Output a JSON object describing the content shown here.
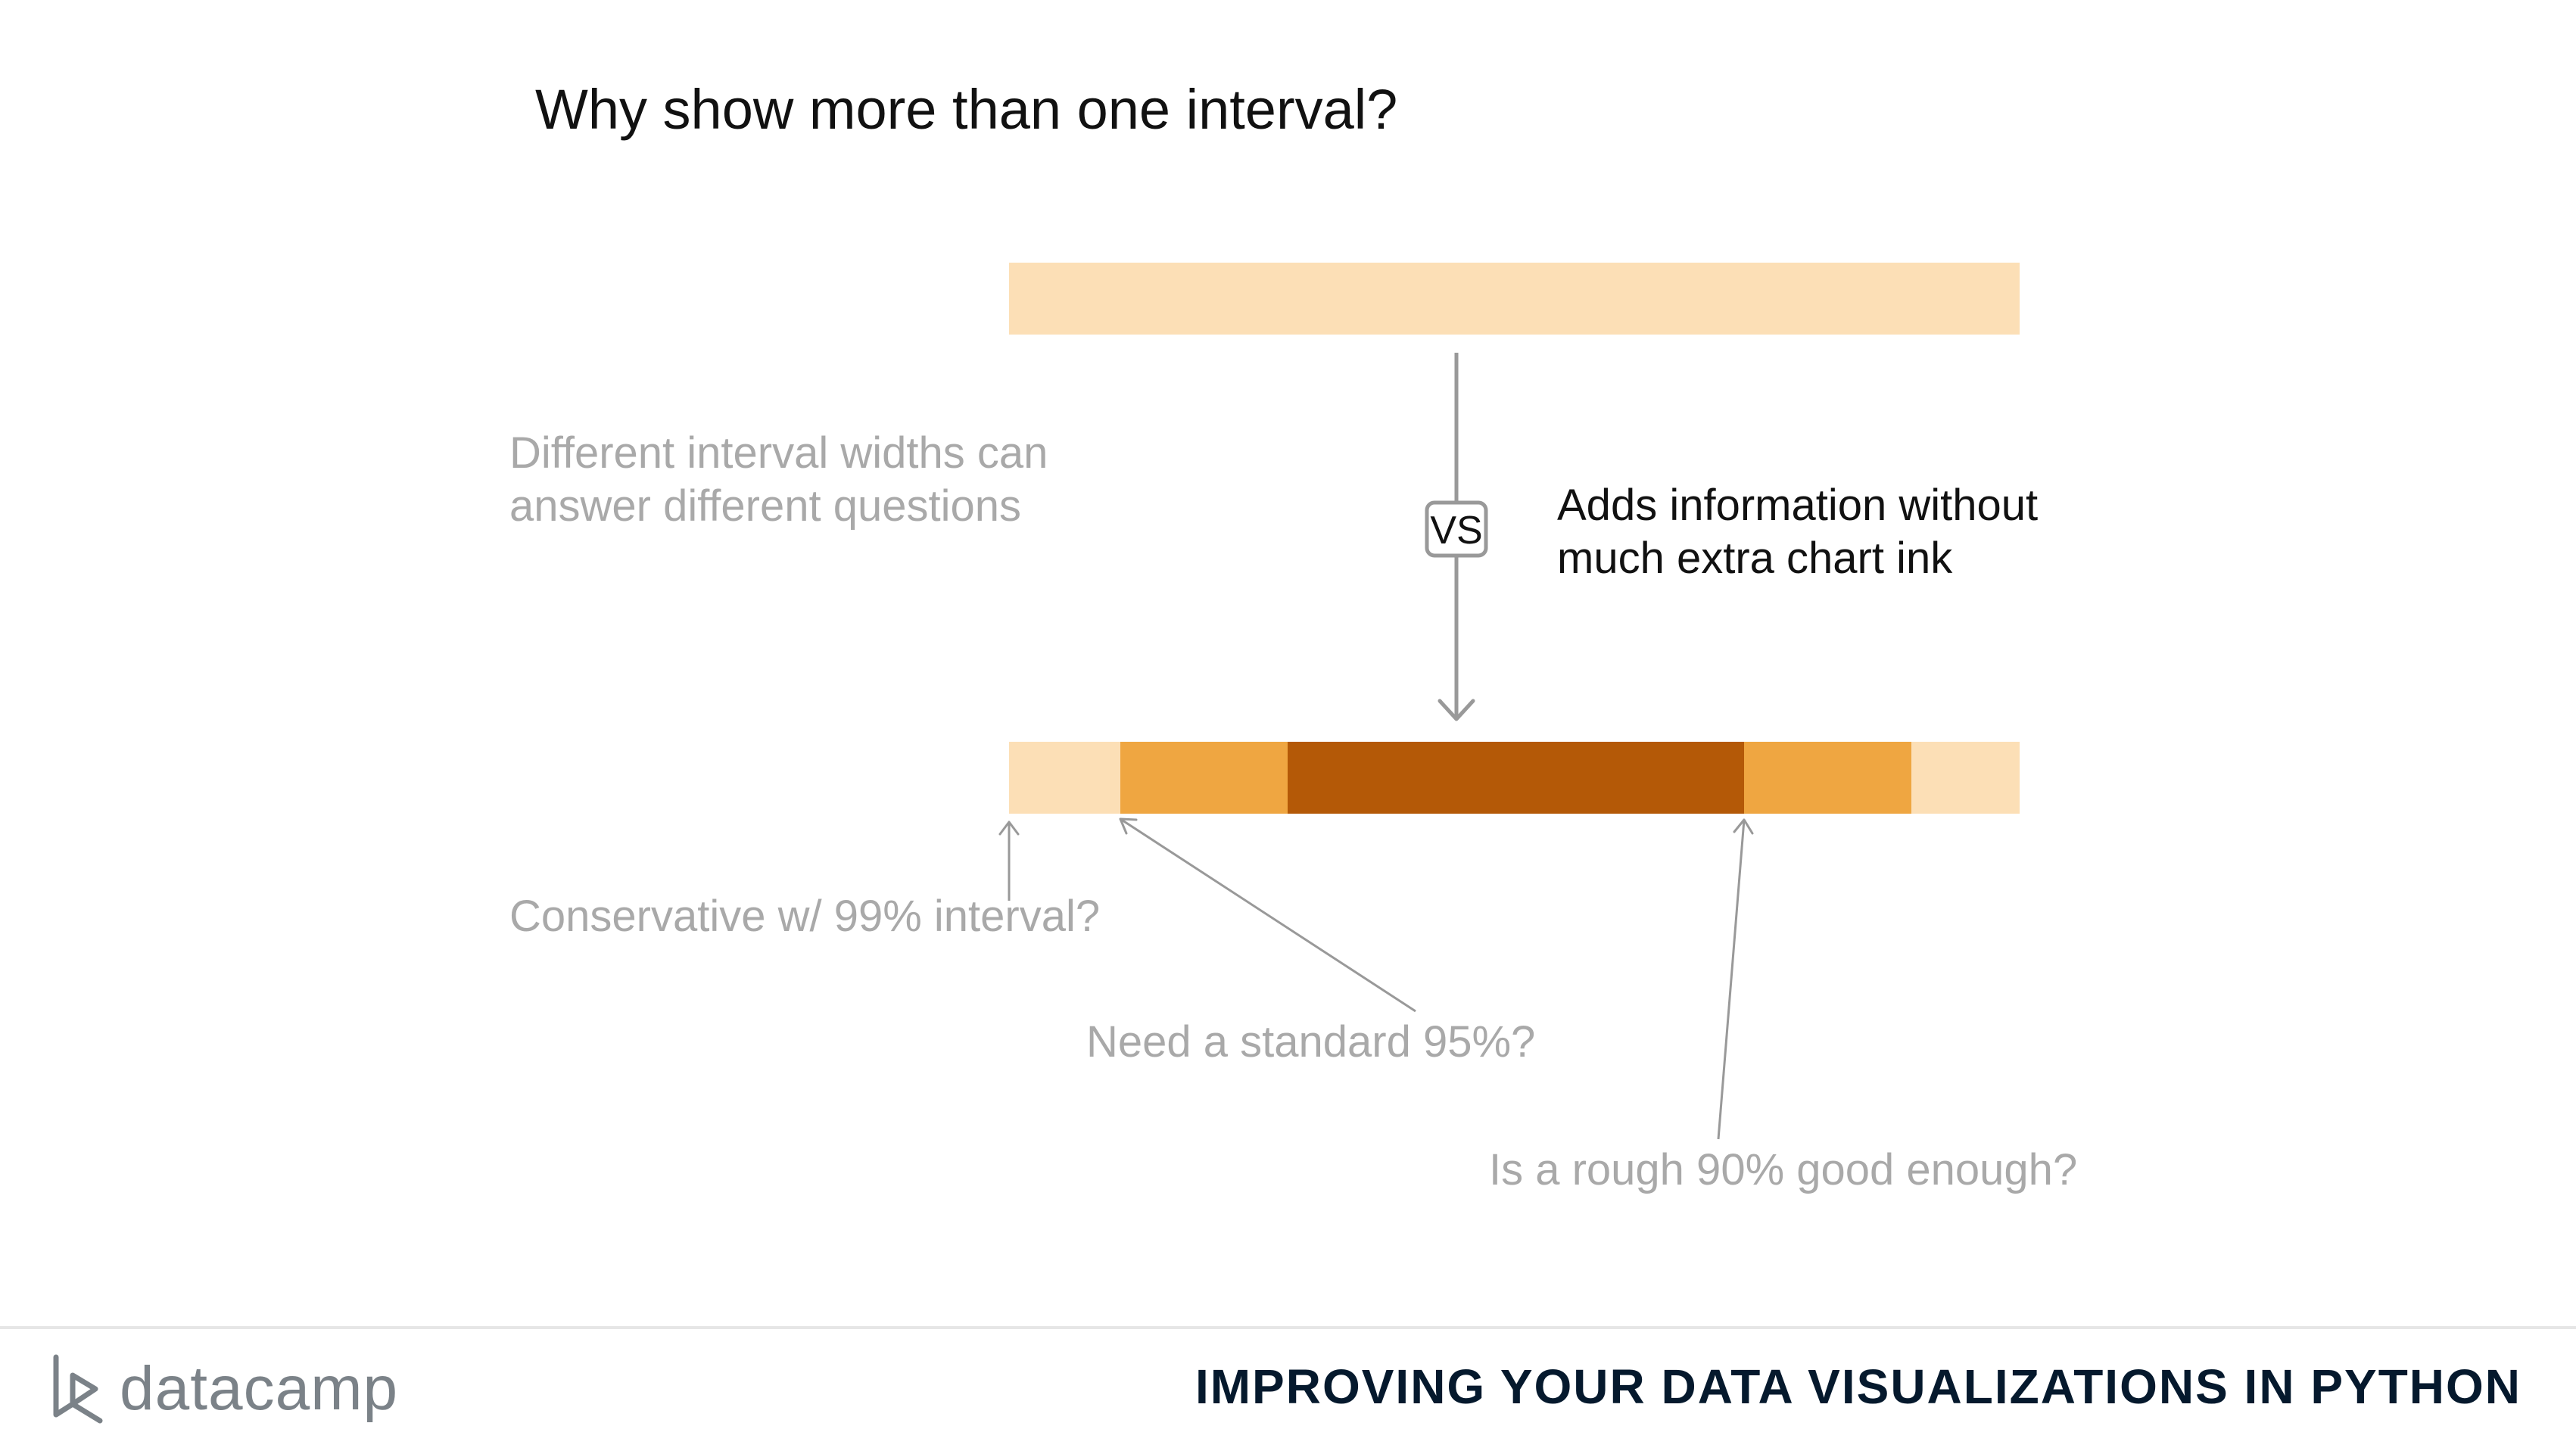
{
  "slide": {
    "title": "Why show more than one interval?",
    "left_note": [
      "Different interval widths can",
      "answer different questions"
    ],
    "vs_label": "VS",
    "right_note": [
      "Adds information without",
      "much extra chart ink"
    ]
  },
  "bars": {
    "top_bar": {
      "color": "#fcdfb6"
    },
    "bottom_bar": {
      "segments": [
        {
          "level": "99%",
          "color": "#fcdfb6"
        },
        {
          "level": "95%",
          "color": "#efa641"
        },
        {
          "level": "90%",
          "color": "#b45907"
        },
        {
          "level": "95%",
          "color": "#efa641"
        },
        {
          "level": "99%",
          "color": "#fcdfb6"
        }
      ]
    }
  },
  "annotations": {
    "a99": "Conservative w/ 99% interval?",
    "a95": "Need a standard 95%?",
    "a90": "Is a rough 90% good enough?"
  },
  "footer": {
    "logo_text": "datacamp",
    "logo_icon": "datacamp-logo-icon",
    "course_title": "IMPROVING YOUR DATA VISUALIZATIONS IN PYTHON"
  },
  "colors": {
    "light": "#fcdfb6",
    "medium": "#efa641",
    "dark": "#b45907",
    "annotation_gray": "#a9a9a9",
    "arrow_gray": "#999999"
  }
}
